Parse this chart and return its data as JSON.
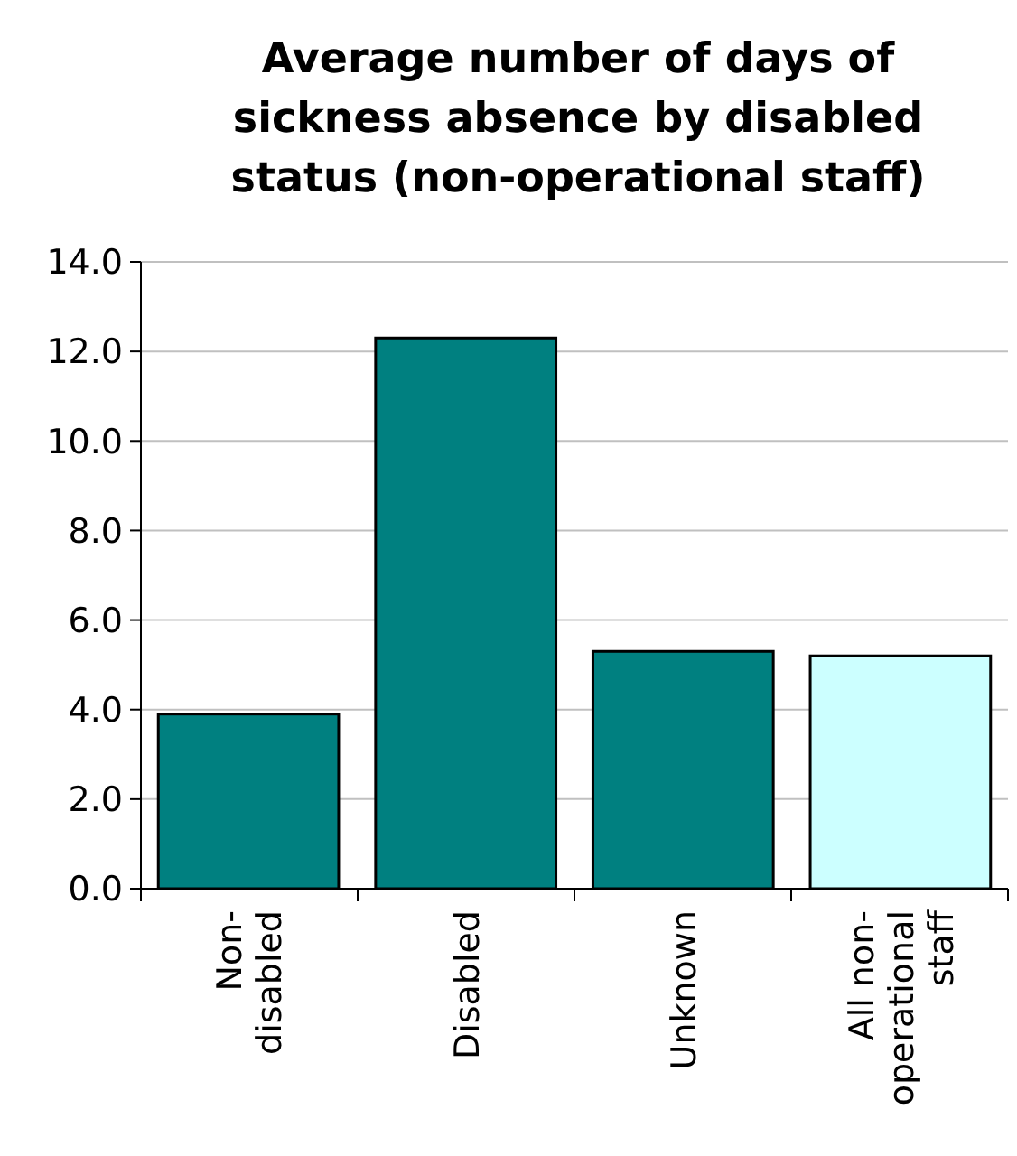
{
  "chart_data": {
    "type": "bar",
    "title": "Average number of days of sickness absence by disabled status (non-operational staff)",
    "categories": [
      "Non-disabled",
      "Disabled",
      "Unknown",
      "All non-operational staff"
    ],
    "values": [
      3.9,
      12.3,
      5.3,
      5.2
    ],
    "colors": [
      "#008080",
      "#008080",
      "#008080",
      "#ccffff"
    ],
    "ylim": [
      0,
      14
    ],
    "yticks": [
      {
        "value": 0,
        "label": "0.0"
      },
      {
        "value": 2,
        "label": "2.0"
      },
      {
        "value": 4,
        "label": "4.0"
      },
      {
        "value": 6,
        "label": "6.0"
      },
      {
        "value": 8,
        "label": "8.0"
      },
      {
        "value": 10,
        "label": "10.0"
      },
      {
        "value": 12,
        "label": "12.0"
      },
      {
        "value": 14,
        "label": "14.0"
      }
    ],
    "grid": "y"
  }
}
